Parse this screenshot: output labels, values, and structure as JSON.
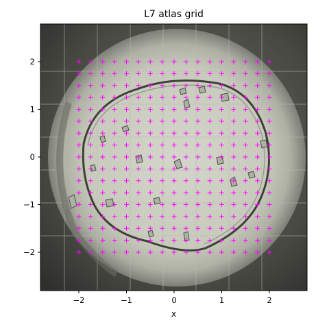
{
  "chart_data": {
    "type": "scatter",
    "title": "L7 atlas grid",
    "xlabel": "x",
    "ylabel": "",
    "xlim": [
      -2.8,
      2.8
    ],
    "ylim": [
      -2.8,
      2.8
    ],
    "x_ticks": [
      -2,
      -1,
      0,
      1,
      2
    ],
    "y_ticks": [
      -2,
      -1,
      0,
      1,
      2
    ],
    "x_tick_labels": [
      "−2",
      "−1",
      "0",
      "1",
      "2"
    ],
    "y_tick_labels": [
      "−2",
      "−1",
      "0",
      "1",
      "2"
    ],
    "grid": false,
    "background": "microscope image of sample grid (circular aperture)",
    "series": [
      {
        "marker": "+",
        "color": "#ff00ff",
        "grid_points": {
          "x_start": -2.0,
          "x_end": 2.0,
          "x_step": 0.25,
          "y_start": -2.0,
          "y_end": 2.0,
          "y_step": 0.25
        }
      }
    ]
  },
  "colors": {
    "marker": "#ff00ff",
    "frame_dark": "#3a3b36",
    "disc_light": "#c9cbbf"
  }
}
